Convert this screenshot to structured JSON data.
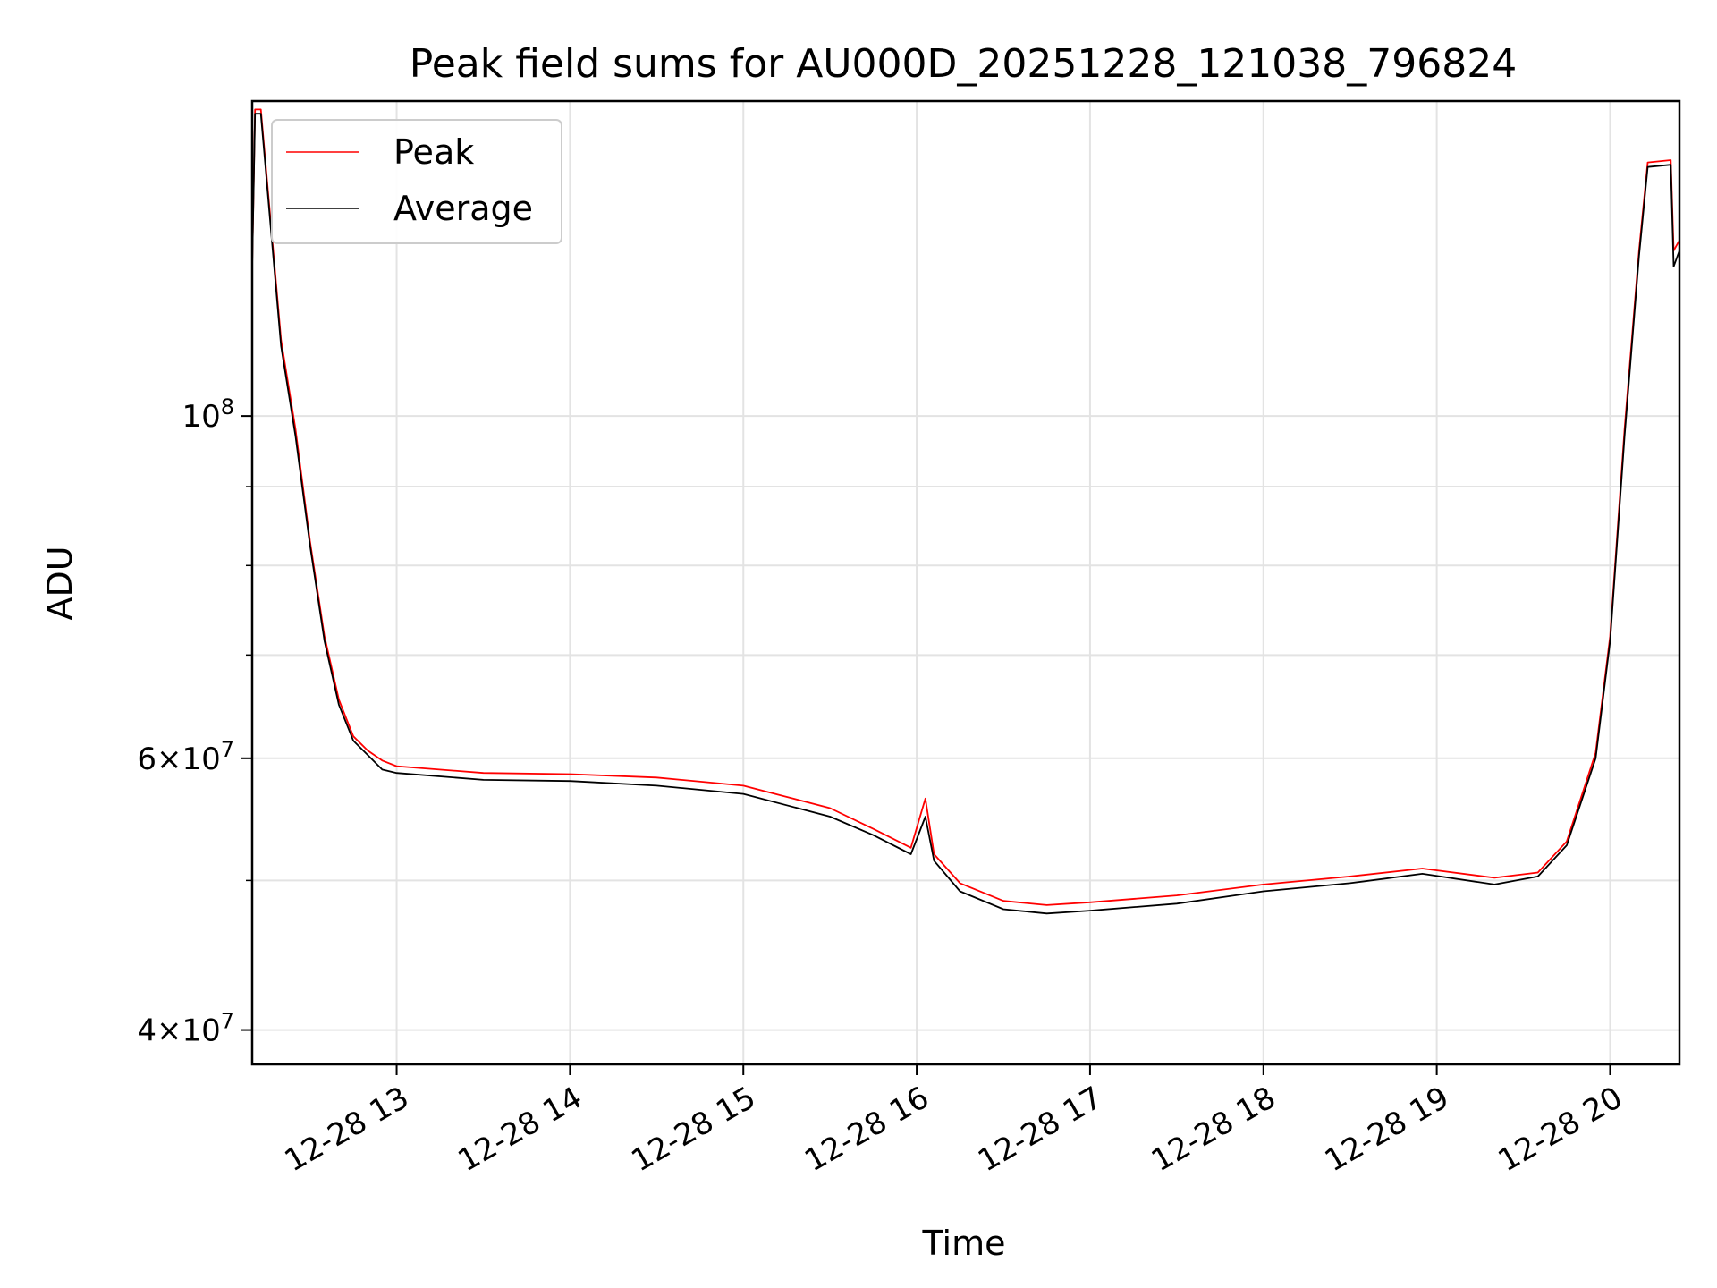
{
  "chart_data": {
    "type": "line",
    "title": "Peak field sums for AU000D_20251228_121038_796824",
    "xlabel": "Time",
    "ylabel": "ADU",
    "y_scale": "log",
    "ylim": [
      38000000,
      160000000
    ],
    "xlim": [
      "2025-12-28 12:10",
      "2025-12-28 20:24"
    ],
    "grid": true,
    "legend_position": "top-left",
    "x_ticks": [
      {
        "t": "2025-12-28 13:00",
        "label": "12-28 13"
      },
      {
        "t": "2025-12-28 14:00",
        "label": "12-28 14"
      },
      {
        "t": "2025-12-28 15:00",
        "label": "12-28 15"
      },
      {
        "t": "2025-12-28 16:00",
        "label": "12-28 16"
      },
      {
        "t": "2025-12-28 17:00",
        "label": "12-28 17"
      },
      {
        "t": "2025-12-28 18:00",
        "label": "12-28 18"
      },
      {
        "t": "2025-12-28 19:00",
        "label": "12-28 19"
      },
      {
        "t": "2025-12-28 20:00",
        "label": "12-28 20"
      }
    ],
    "y_major_ticks": [
      {
        "value": 40000000,
        "mant": "4",
        "exp": "7"
      },
      {
        "value": 60000000,
        "mant": "6",
        "exp": "7"
      },
      {
        "value": 100000000,
        "mant": "",
        "exp": "8"
      }
    ],
    "y_minor_gridlines": [
      50000000,
      70000000,
      80000000,
      90000000
    ],
    "series": [
      {
        "name": "Peak",
        "color": "#ff0000",
        "points": [
          [
            "2025-12-28 12:10",
            125000000
          ],
          [
            "2025-12-28 12:11",
            158000000
          ],
          [
            "2025-12-28 12:13",
            158000000
          ],
          [
            "2025-12-28 12:20",
            112000000
          ],
          [
            "2025-12-28 12:25",
            98000000
          ],
          [
            "2025-12-28 12:30",
            83000000
          ],
          [
            "2025-12-28 12:35",
            72000000
          ],
          [
            "2025-12-28 12:40",
            65500000
          ],
          [
            "2025-12-28 12:45",
            62000000
          ],
          [
            "2025-12-28 12:50",
            60700000
          ],
          [
            "2025-12-28 12:55",
            59800000
          ],
          [
            "2025-12-28 13:00",
            59300000
          ],
          [
            "2025-12-28 13:30",
            58700000
          ],
          [
            "2025-12-28 14:00",
            58600000
          ],
          [
            "2025-12-28 14:30",
            58300000
          ],
          [
            "2025-12-28 15:00",
            57600000
          ],
          [
            "2025-12-28 15:30",
            55700000
          ],
          [
            "2025-12-28 15:45",
            54000000
          ],
          [
            "2025-12-28 15:58",
            52500000
          ],
          [
            "2025-12-28 16:03",
            56500000
          ],
          [
            "2025-12-28 16:06",
            52000000
          ],
          [
            "2025-12-28 16:15",
            49800000
          ],
          [
            "2025-12-28 16:30",
            48500000
          ],
          [
            "2025-12-28 16:45",
            48200000
          ],
          [
            "2025-12-28 17:00",
            48400000
          ],
          [
            "2025-12-28 17:30",
            48900000
          ],
          [
            "2025-12-28 18:00",
            49700000
          ],
          [
            "2025-12-28 18:30",
            50300000
          ],
          [
            "2025-12-28 18:55",
            50900000
          ],
          [
            "2025-12-28 19:20",
            50200000
          ],
          [
            "2025-12-28 19:35",
            50600000
          ],
          [
            "2025-12-28 19:45",
            53000000
          ],
          [
            "2025-12-28 19:55",
            60500000
          ],
          [
            "2025-12-28 20:00",
            72000000
          ],
          [
            "2025-12-28 20:05",
            98000000
          ],
          [
            "2025-12-28 20:10",
            128000000
          ],
          [
            "2025-12-28 20:13",
            146000000
          ],
          [
            "2025-12-28 20:21",
            146500000
          ],
          [
            "2025-12-28 20:22",
            128000000
          ],
          [
            "2025-12-28 20:24",
            130000000
          ]
        ]
      },
      {
        "name": "Average",
        "color": "#000000",
        "points": [
          [
            "2025-12-28 12:10",
            125000000
          ],
          [
            "2025-12-28 12:11",
            157000000
          ],
          [
            "2025-12-28 12:13",
            157000000
          ],
          [
            "2025-12-28 12:20",
            111000000
          ],
          [
            "2025-12-28 12:25",
            97000000
          ],
          [
            "2025-12-28 12:30",
            82500000
          ],
          [
            "2025-12-28 12:35",
            71500000
          ],
          [
            "2025-12-28 12:40",
            65000000
          ],
          [
            "2025-12-28 12:45",
            61600000
          ],
          [
            "2025-12-28 12:50",
            60300000
          ],
          [
            "2025-12-28 12:55",
            59000000
          ],
          [
            "2025-12-28 13:00",
            58700000
          ],
          [
            "2025-12-28 13:30",
            58100000
          ],
          [
            "2025-12-28 14:00",
            58000000
          ],
          [
            "2025-12-28 14:30",
            57600000
          ],
          [
            "2025-12-28 15:00",
            56900000
          ],
          [
            "2025-12-28 15:30",
            55000000
          ],
          [
            "2025-12-28 15:45",
            53500000
          ],
          [
            "2025-12-28 15:58",
            52000000
          ],
          [
            "2025-12-28 16:03",
            55000000
          ],
          [
            "2025-12-28 16:06",
            51500000
          ],
          [
            "2025-12-28 16:15",
            49200000
          ],
          [
            "2025-12-28 16:30",
            47900000
          ],
          [
            "2025-12-28 16:45",
            47600000
          ],
          [
            "2025-12-28 17:00",
            47800000
          ],
          [
            "2025-12-28 17:30",
            48300000
          ],
          [
            "2025-12-28 18:00",
            49200000
          ],
          [
            "2025-12-28 18:30",
            49800000
          ],
          [
            "2025-12-28 18:55",
            50500000
          ],
          [
            "2025-12-28 19:20",
            49700000
          ],
          [
            "2025-12-28 19:35",
            50300000
          ],
          [
            "2025-12-28 19:45",
            52700000
          ],
          [
            "2025-12-28 19:55",
            60000000
          ],
          [
            "2025-12-28 20:00",
            71500000
          ],
          [
            "2025-12-28 20:05",
            97000000
          ],
          [
            "2025-12-28 20:10",
            127000000
          ],
          [
            "2025-12-28 20:13",
            145000000
          ],
          [
            "2025-12-28 20:21",
            145500000
          ],
          [
            "2025-12-28 20:22",
            125000000
          ],
          [
            "2025-12-28 20:24",
            128000000
          ]
        ]
      }
    ]
  }
}
